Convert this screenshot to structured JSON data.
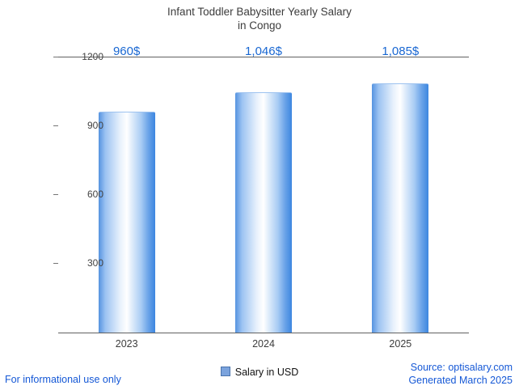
{
  "chart_data": {
    "type": "bar",
    "title": "Infant Toddler Babysitter Yearly Salary in Congo",
    "title_line1": "Infant Toddler Babysitter Yearly Salary",
    "title_line2": "in Congo",
    "categories": [
      "2023",
      "2024",
      "2025"
    ],
    "values": [
      960,
      1046,
      1085
    ],
    "value_labels": [
      "960$",
      "1,046$",
      "1,085$"
    ],
    "series": [
      {
        "name": "Salary in USD",
        "values": [
          960,
          1046,
          1085
        ]
      }
    ],
    "ylim": [
      0,
      1200
    ],
    "yticks": [
      300,
      600,
      900,
      1200
    ],
    "grid": false,
    "legend": {
      "label": "Salary in USD",
      "position": "bottom"
    },
    "accent_color": "#1967d2",
    "bar_gradient": [
      "#5593e0",
      "#ffffff",
      "#3c86e0"
    ]
  },
  "footer": {
    "left_note": "For informational use only",
    "source": "Source: optisalary.com",
    "generated": "Generated March 2025"
  }
}
